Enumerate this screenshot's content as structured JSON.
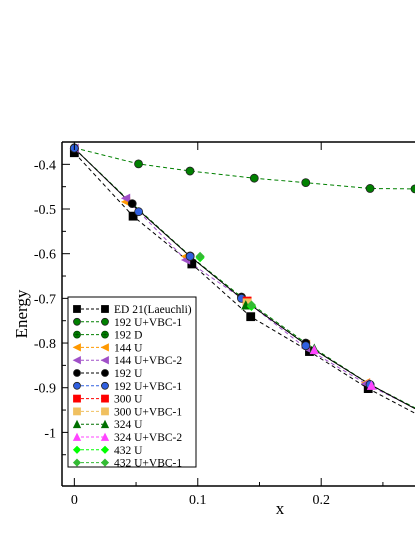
{
  "chart_data": {
    "type": "line",
    "xlabel": "x",
    "ylabel": "Energy",
    "xlim": [
      -0.01,
      0.276
    ],
    "ylim": [
      -1.12,
      -0.35
    ],
    "x_ticks": [
      {
        "value": 0,
        "label": "0"
      },
      {
        "value": 0.1,
        "label": "0.1"
      },
      {
        "value": 0.2,
        "label": "0.2"
      }
    ],
    "y_ticks": [
      {
        "value": -0.4,
        "label": "-0.4"
      },
      {
        "value": -0.5,
        "label": "-0.5"
      },
      {
        "value": -0.6,
        "label": "-0.6"
      },
      {
        "value": -0.7,
        "label": "-0.7"
      },
      {
        "value": -0.8,
        "label": "-0.8"
      },
      {
        "value": -0.9,
        "label": "-0.9"
      },
      {
        "value": -1.0,
        "label": "-1"
      }
    ],
    "grid": false,
    "legend_position": "bottom-left",
    "series": [
      {
        "name": "ED 21(Laeuchli)",
        "color": "#000000",
        "marker": "square",
        "x": [
          0,
          0.0476,
          0.0952,
          0.1429,
          0.1905,
          0.2381
        ],
        "y": [
          -0.374,
          -0.516,
          -0.623,
          -0.741,
          -0.819,
          -0.902
        ]
      },
      {
        "name": "192 U+VBC-1",
        "color": "#008000",
        "marker": "circle",
        "x": [
          0,
          0.052,
          0.0937,
          0.1458,
          0.1875,
          0.2396,
          0.276
        ],
        "y": [
          -0.363,
          -0.399,
          -0.415,
          -0.431,
          -0.441,
          -0.454,
          -0.455
        ]
      },
      {
        "name": "192 D",
        "color": "#008000",
        "marker": "circle-hatched",
        "x": [],
        "y": []
      },
      {
        "name": "144 U",
        "color": "#ff9900",
        "marker": "triangle-left",
        "x": [
          0.0417,
          0.0903,
          0.1389,
          0.1875,
          0.2361
        ],
        "y": [
          -0.484,
          -0.606,
          -0.708,
          -0.803,
          -0.889
        ]
      },
      {
        "name": "144 U+VBC-2",
        "color": "#a050c8",
        "marker": "triangle-left",
        "x": [
          0,
          0.0417,
          0.0903,
          0.1389,
          0.1875,
          0.2361
        ],
        "y": [
          -0.364,
          -0.476,
          -0.614,
          -0.706,
          -0.811,
          -0.891
        ]
      },
      {
        "name": "192 U",
        "color": "#000000",
        "marker": "circle",
        "x": [
          0,
          0.0469,
          0.0938,
          0.1354,
          0.1875,
          0.2396
        ],
        "y": [
          -0.364,
          -0.488,
          -0.605,
          -0.697,
          -0.8,
          -0.893
        ]
      },
      {
        "name": "192 U+VBC-1",
        "color": "#3060e0",
        "marker": "circle",
        "x": [
          0,
          0.0521,
          0.0938,
          0.1354,
          0.1875,
          0.2396
        ],
        "y": [
          -0.364,
          -0.506,
          -0.606,
          -0.7,
          -0.806,
          -0.893
        ]
      },
      {
        "name": "300 U",
        "color": "#ff0000",
        "marker": "square",
        "x": [
          0.14
        ],
        "y": [
          -0.706
        ]
      },
      {
        "name": "300 U+VBC-1",
        "color": "#f0c060",
        "marker": "square",
        "x": [
          0.14
        ],
        "y": [
          -0.71
        ]
      },
      {
        "name": "324 U",
        "color": "#007000",
        "marker": "triangle-up",
        "x": [
          0.1389,
          0.1944
        ],
        "y": [
          -0.715,
          -0.812
        ]
      },
      {
        "name": "324 U+VBC-2",
        "color": "#ff44ff",
        "marker": "triangle-up",
        "x": [
          0.1944,
          0.2407
        ],
        "y": [
          -0.815,
          -0.895
        ]
      },
      {
        "name": "432 U",
        "color": "#00ff00",
        "marker": "diamond",
        "x": [
          0.1019,
          0.1435
        ],
        "y": [
          -0.609,
          -0.718
        ]
      },
      {
        "name": "432 U+VBC-1",
        "color": "#33bb33",
        "marker": "diamond",
        "x": [
          0.1019,
          0.1435
        ],
        "y": [
          -0.606,
          -0.715
        ]
      }
    ],
    "curves": [
      {
        "color": "#000000",
        "dash": "4,3",
        "x": [
          0,
          0.0476,
          0.0952,
          0.1429,
          0.1905,
          0.2381,
          0.276
        ],
        "y": [
          -0.374,
          -0.516,
          -0.623,
          -0.741,
          -0.819,
          -0.902,
          -0.957
        ]
      },
      {
        "color": "#008000",
        "dash": "4,3",
        "x": [
          0,
          0.052,
          0.0937,
          0.1458,
          0.1875,
          0.2396,
          0.276
        ],
        "y": [
          -0.363,
          -0.399,
          -0.415,
          -0.431,
          -0.441,
          -0.454,
          -0.455
        ]
      },
      {
        "color": "#a050c8",
        "dash": "4,3",
        "x": [
          0,
          0.0417,
          0.0903,
          0.1389,
          0.1875,
          0.2361,
          0.276
        ],
        "y": [
          -0.364,
          -0.476,
          -0.614,
          -0.706,
          -0.811,
          -0.891,
          -0.946
        ]
      },
      {
        "color": "#008000",
        "dash": "4,3",
        "x": [
          0,
          0.0469,
          0.0938,
          0.1354,
          0.1875,
          0.2396,
          0.276
        ],
        "y": [
          -0.364,
          -0.488,
          -0.605,
          -0.697,
          -0.8,
          -0.893,
          -0.945
        ]
      },
      {
        "color": "#000000",
        "dash": "none",
        "x": [
          0,
          0.0469,
          0.0938,
          0.1354,
          0.1875,
          0.2396,
          0.276
        ],
        "y": [
          -0.364,
          -0.49,
          -0.606,
          -0.7,
          -0.803,
          -0.893,
          -0.947
        ]
      }
    ]
  }
}
